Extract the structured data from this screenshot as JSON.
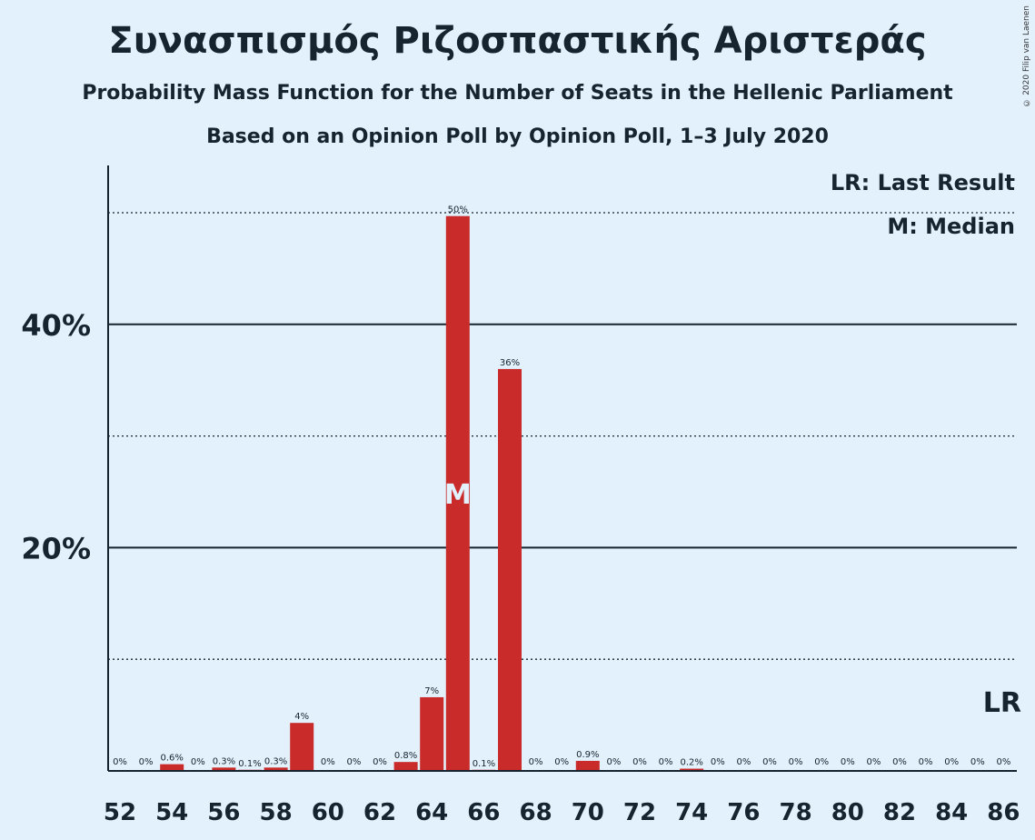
{
  "chart_data": {
    "type": "bar",
    "title": "Συνασπισμός Ριζοσπαστικής Αριστεράς",
    "subtitle": "Probability Mass Function for the Number of Seats in the Hellenic Parliament",
    "subtitle2": "Based on an Opinion Poll by Opinion Poll, 1–3 July 2020",
    "copyright": "© 2020 Filip van Laenen",
    "legend": {
      "last_result": "LR: Last Result",
      "median": "M: Median",
      "placement": "top-right"
    },
    "bar_color": "#c92b2b",
    "x": [
      52,
      53,
      54,
      55,
      56,
      57,
      58,
      59,
      60,
      61,
      62,
      63,
      64,
      65,
      66,
      67,
      68,
      69,
      70,
      71,
      72,
      73,
      74,
      75,
      76,
      77,
      78,
      79,
      80,
      81,
      82,
      83,
      84,
      85,
      86
    ],
    "values": [
      0,
      0,
      0.6,
      0,
      0.3,
      0.1,
      0.3,
      4.3,
      0,
      0,
      0,
      0.8,
      6.6,
      49.7,
      0.1,
      36.0,
      0,
      0,
      0.9,
      0,
      0,
      0,
      0.2,
      0,
      0,
      0,
      0,
      0,
      0,
      0,
      0,
      0,
      0,
      0,
      0
    ],
    "labels": [
      "0%",
      "0%",
      "0.6%",
      "0%",
      "0.3%",
      "0.1%",
      "0.3%",
      "4%",
      "0%",
      "0%",
      "0%",
      "0.8%",
      "7%",
      "50%",
      "0.1%",
      "36%",
      "0%",
      "0%",
      "0.9%",
      "0%",
      "0%",
      "0%",
      "0.2%",
      "0%",
      "0%",
      "0%",
      "0%",
      "0%",
      "0%",
      "0%",
      "0%",
      "0%",
      "0%",
      "0%",
      "0%"
    ],
    "x_tick_labels": [
      "52",
      "54",
      "56",
      "58",
      "60",
      "62",
      "64",
      "66",
      "68",
      "70",
      "72",
      "74",
      "76",
      "78",
      "80",
      "82",
      "84",
      "86"
    ],
    "y_tick_labels": [
      "20%",
      "40%"
    ],
    "ylim": [
      0,
      54
    ],
    "major_grid": [
      20,
      40
    ],
    "minor_grid": [
      10,
      30,
      50
    ],
    "median_seat": 65,
    "median_label": "M",
    "last_result_seat": 86,
    "last_result_label": "LR"
  }
}
